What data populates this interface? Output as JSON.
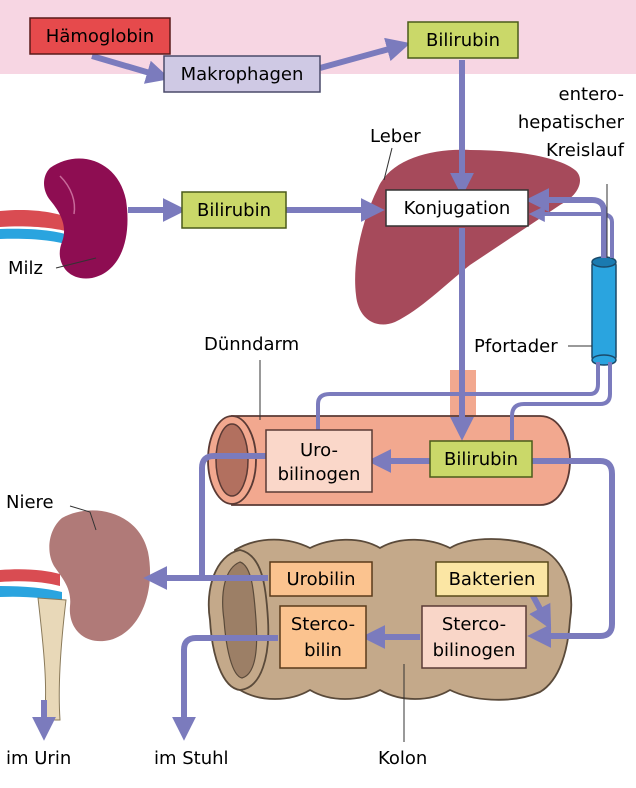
{
  "labels": {
    "haemoglobin": "Hämoglobin",
    "makrophagen": "Makrophagen",
    "bilirubin_top": "Bilirubin",
    "bilirubin_spleen": "Bilirubin",
    "bilirubin_gut": "Bilirubin",
    "konjugation": "Konjugation",
    "leber": "Leber",
    "milz": "Milz",
    "entero_line1": "entero-",
    "entero_line2": "hepatischer",
    "entero_line3": "Kreislauf",
    "pfortader": "Pfortader",
    "duenndarm": "Dünndarm",
    "uro_line1": "Uro-",
    "uro_line2": "bilinogen",
    "niere": "Niere",
    "urobilin": "Urobilin",
    "bakterien": "Bakterien",
    "sterco_bilinogen_line1": "Sterco-",
    "sterco_bilinogen_line2": "bilinogen",
    "sterco_bilin_line1": "Sterco-",
    "sterco_bilin_line2": "bilin",
    "kolon": "Kolon",
    "im_urin": "im Urin",
    "im_stuhl": "im Stuhl"
  },
  "colors": {
    "arrow": "#7b7bbd",
    "top_band": "#f7d6e3",
    "haemoglobin_box": "#e64a4c",
    "makrophagen_box": "#cfc9e4",
    "bilirubin_box": "#cad869",
    "liver": "#a64a5b",
    "spleen": "#8e0d52",
    "kidney": "#b07a78",
    "portal_vein": "#2aa4df",
    "small_intestine": "#f2a88f",
    "colon": "#c4a98a",
    "urobilin_box": "#fbc38f",
    "bakterien_box": "#fbe6a4",
    "sterco_bilinogen_box": "#f9d6c8",
    "uro_box": "#fad7c9"
  }
}
